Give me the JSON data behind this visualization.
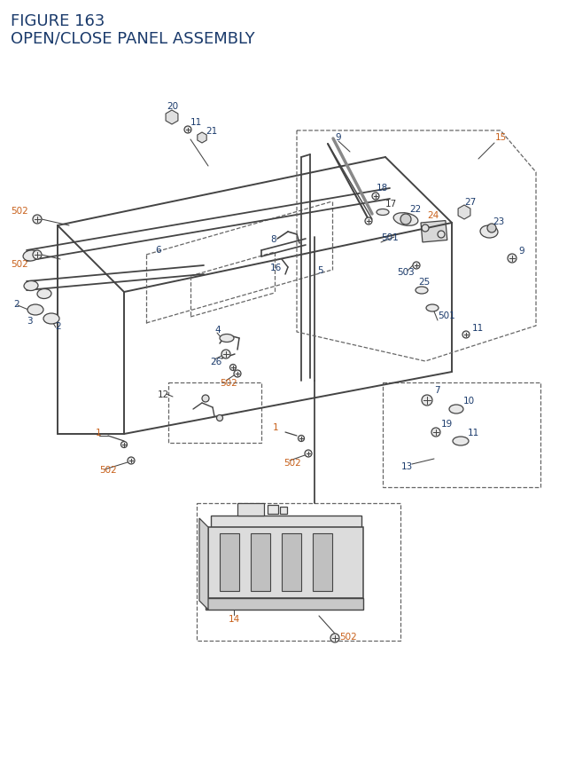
{
  "title_line1": "FIGURE 163",
  "title_line2": "OPEN/CLOSE PANEL ASSEMBLY",
  "title_color": "#1a3a6b",
  "title_fontsize": 13,
  "bg_color": "#ffffff",
  "blue": "#1a3a6b",
  "orange": "#c8601a",
  "black": "#333333",
  "lc": "#444444",
  "dc": "#666666"
}
